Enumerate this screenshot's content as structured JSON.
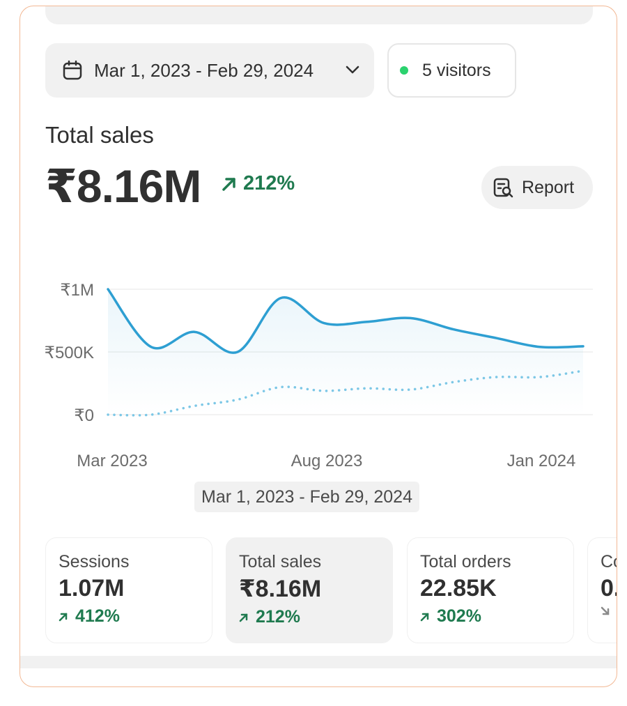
{
  "date_range": {
    "label": "Mar 1, 2023 - Feb 29, 2024"
  },
  "visitors": {
    "label": "5 visitors"
  },
  "headline": {
    "label": "Total sales",
    "value": "₹8.16M",
    "change": "212%"
  },
  "report_button": {
    "label": "Report"
  },
  "range_chip": "Mar 1, 2023 - Feb 29, 2024",
  "chart_data": {
    "type": "line",
    "title": "",
    "xlabel": "",
    "ylabel": "",
    "y_tick_labels": [
      "₹1M",
      "₹500K",
      "₹0"
    ],
    "x_tick_labels": [
      "Mar 2023",
      "Aug 2023",
      "Jan 2024"
    ],
    "ylim": [
      0,
      1000000
    ],
    "grid": true,
    "series": [
      {
        "style": "solid",
        "color": "#2e9fd2",
        "values": [
          1000000,
          540000,
          660000,
          500000,
          930000,
          730000,
          740000,
          770000,
          680000,
          610000,
          540000,
          545000
        ]
      },
      {
        "style": "dotted",
        "color": "#7cc7e6",
        "values": [
          0,
          0,
          70000,
          120000,
          220000,
          190000,
          210000,
          200000,
          260000,
          300000,
          300000,
          350000
        ]
      }
    ]
  },
  "metrics": [
    {
      "label": "Sessions",
      "value": "1.07M",
      "change": "412%"
    },
    {
      "label": "Total sales",
      "value": "₹8.16M",
      "change": "212%"
    },
    {
      "label": "Total orders",
      "value": "22.85K",
      "change": "302%"
    },
    {
      "label": "Co",
      "value": "0.",
      "change": ""
    }
  ],
  "colors": {
    "accent_green": "#1f7a4f",
    "line_blue": "#2e9fd2",
    "dot_green": "#2bd26e",
    "frame_border": "#f2b894"
  }
}
